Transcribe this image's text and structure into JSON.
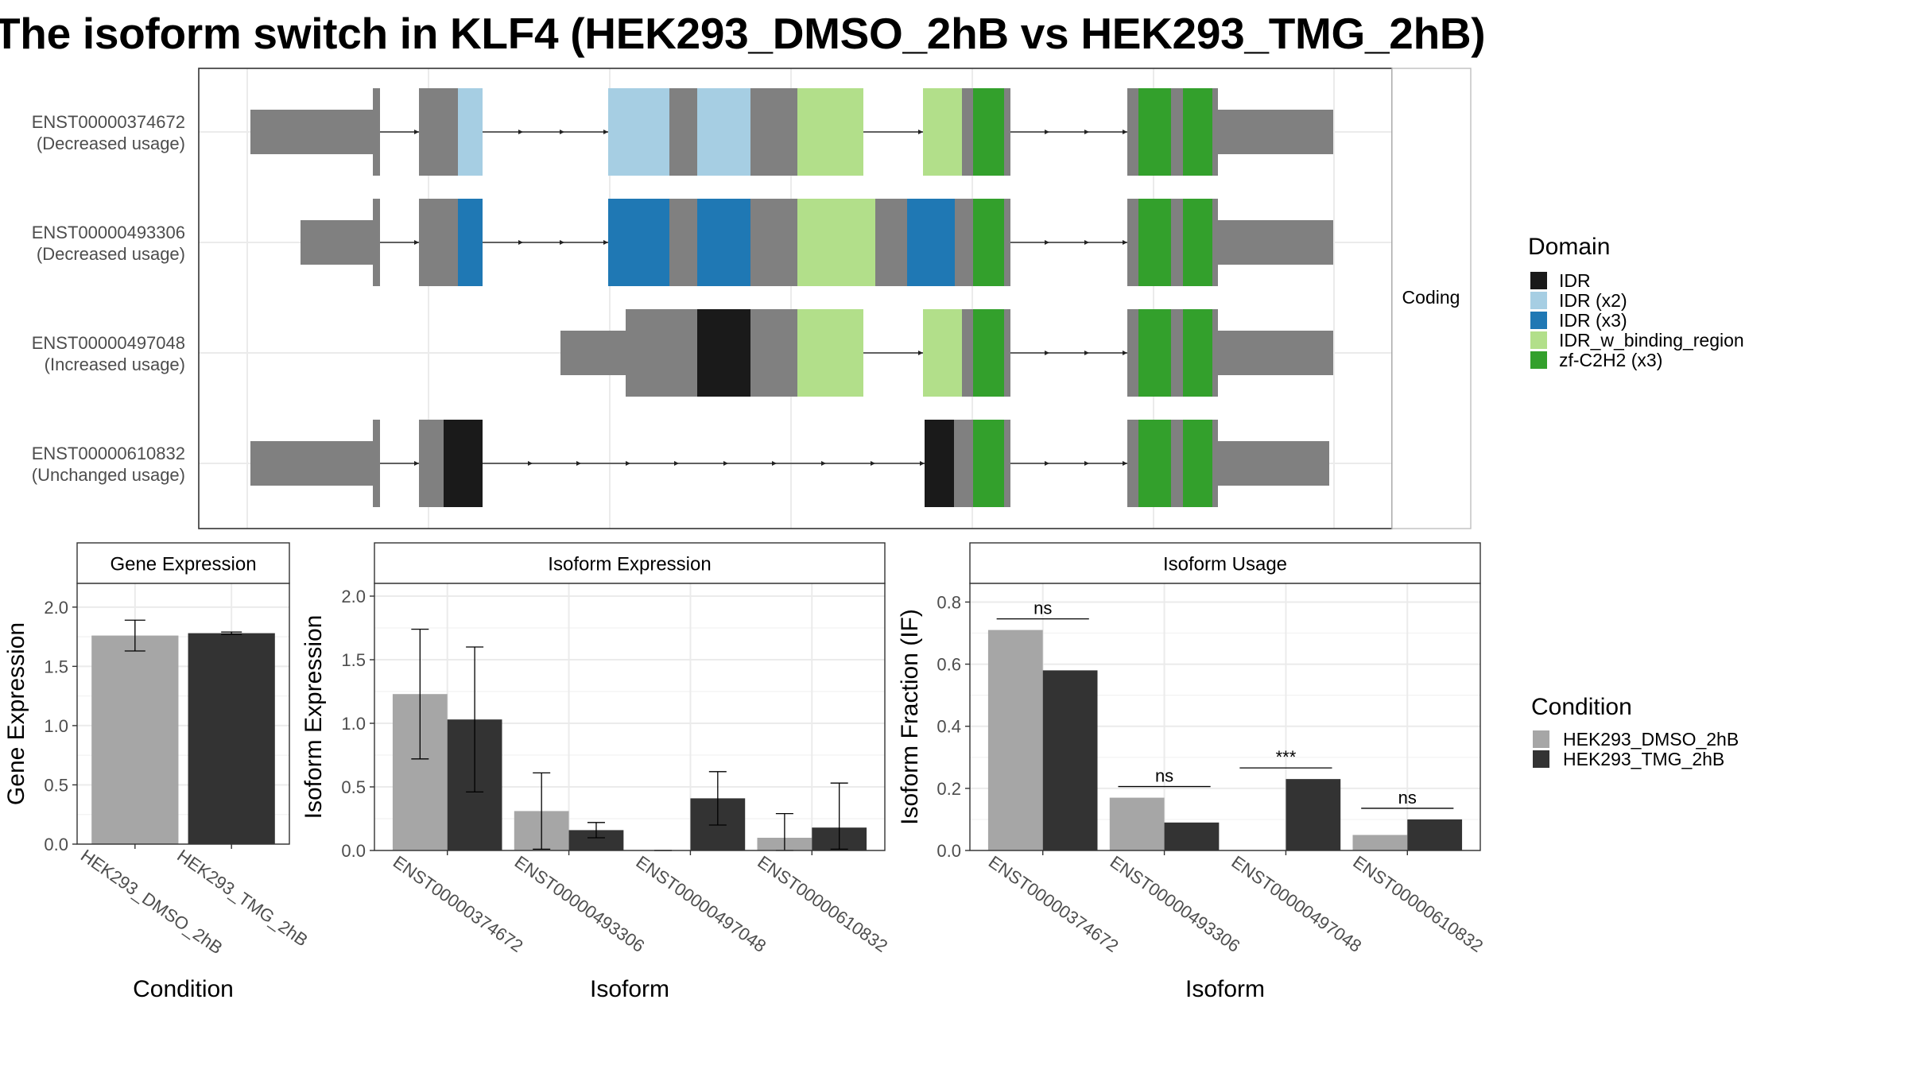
{
  "title": "The isoform switch in KLF4 (HEK293_DMSO_2hB vs HEK293_TMG_2hB)",
  "colors": {
    "exon": "#808080",
    "IDR": "#1a1a1a",
    "IDR (x2)": "#a6cee3",
    "IDR (x3)": "#1f78b4",
    "IDR_w_binding_region": "#b2df8a",
    "zf-C2H2 (x3)": "#33a02c",
    "HEK293_DMSO_2hB": "#a6a6a6",
    "HEK293_TMG_2hB": "#333333"
  },
  "structure": {
    "strip_label": "Coding",
    "isoforms": [
      {
        "id": "ENST00000374672",
        "usage": "(Decreased usage)"
      },
      {
        "id": "ENST00000493306",
        "usage": "(Decreased usage)"
      },
      {
        "id": "ENST00000497048",
        "usage": "(Increased usage)"
      },
      {
        "id": "ENST00000610832",
        "usage": "(Unchanged usage)"
      }
    ]
  },
  "domain_legend": {
    "title": "Domain",
    "items": [
      "IDR",
      "IDR (x2)",
      "IDR (x3)",
      "IDR_w_binding_region",
      "zf-C2H2 (x3)"
    ]
  },
  "condition_legend": {
    "title": "Condition",
    "items": [
      "HEK293_DMSO_2hB",
      "HEK293_TMG_2hB"
    ]
  },
  "chart_data": [
    {
      "type": "bar",
      "panel": "Gene Expression",
      "title": "Gene Expression",
      "xlabel": "Condition",
      "ylabel": "Gene Expression",
      "ylim": [
        0,
        2.2
      ],
      "yticks": [
        0.0,
        0.5,
        1.0,
        1.5,
        2.0
      ],
      "categories": [
        "HEK293_DMSO_2hB",
        "HEK293_TMG_2hB"
      ],
      "values": [
        1.76,
        1.78
      ],
      "errors": [
        [
          1.63,
          1.89
        ],
        [
          1.77,
          1.79
        ]
      ]
    },
    {
      "type": "bar",
      "panel": "Isoform Expression",
      "title": "Isoform Expression",
      "xlabel": "Isoform",
      "ylabel": "Isoform Expression",
      "ylim": [
        0,
        2.1
      ],
      "yticks": [
        0.0,
        0.5,
        1.0,
        1.5,
        2.0
      ],
      "categories": [
        "ENST00000374672",
        "ENST00000493306",
        "ENST00000497048",
        "ENST00000610832"
      ],
      "series": [
        {
          "name": "HEK293_DMSO_2hB",
          "values": [
            1.23,
            0.31,
            0.0,
            0.1
          ],
          "errors": [
            [
              0.72,
              1.74
            ],
            [
              0.01,
              0.61
            ],
            [
              0.0,
              0.0
            ],
            [
              0.0,
              0.29
            ]
          ]
        },
        {
          "name": "HEK293_TMG_2hB",
          "values": [
            1.03,
            0.16,
            0.41,
            0.18
          ],
          "errors": [
            [
              0.46,
              1.6
            ],
            [
              0.1,
              0.22
            ],
            [
              0.2,
              0.62
            ],
            [
              0.01,
              0.53
            ]
          ]
        }
      ]
    },
    {
      "type": "bar",
      "panel": "Isoform Usage",
      "title": "Isoform Usage",
      "xlabel": "Isoform",
      "ylabel": "Isoform Fraction (IF)",
      "ylim": [
        0,
        0.86
      ],
      "yticks": [
        0.0,
        0.2,
        0.4,
        0.6,
        0.8
      ],
      "categories": [
        "ENST00000374672",
        "ENST00000493306",
        "ENST00000497048",
        "ENST00000610832"
      ],
      "series": [
        {
          "name": "HEK293_DMSO_2hB",
          "values": [
            0.71,
            0.17,
            0.0,
            0.05
          ]
        },
        {
          "name": "HEK293_TMG_2hB",
          "values": [
            0.58,
            0.09,
            0.23,
            0.1
          ]
        }
      ],
      "significance": [
        "ns",
        "ns",
        "***",
        "ns"
      ]
    }
  ]
}
